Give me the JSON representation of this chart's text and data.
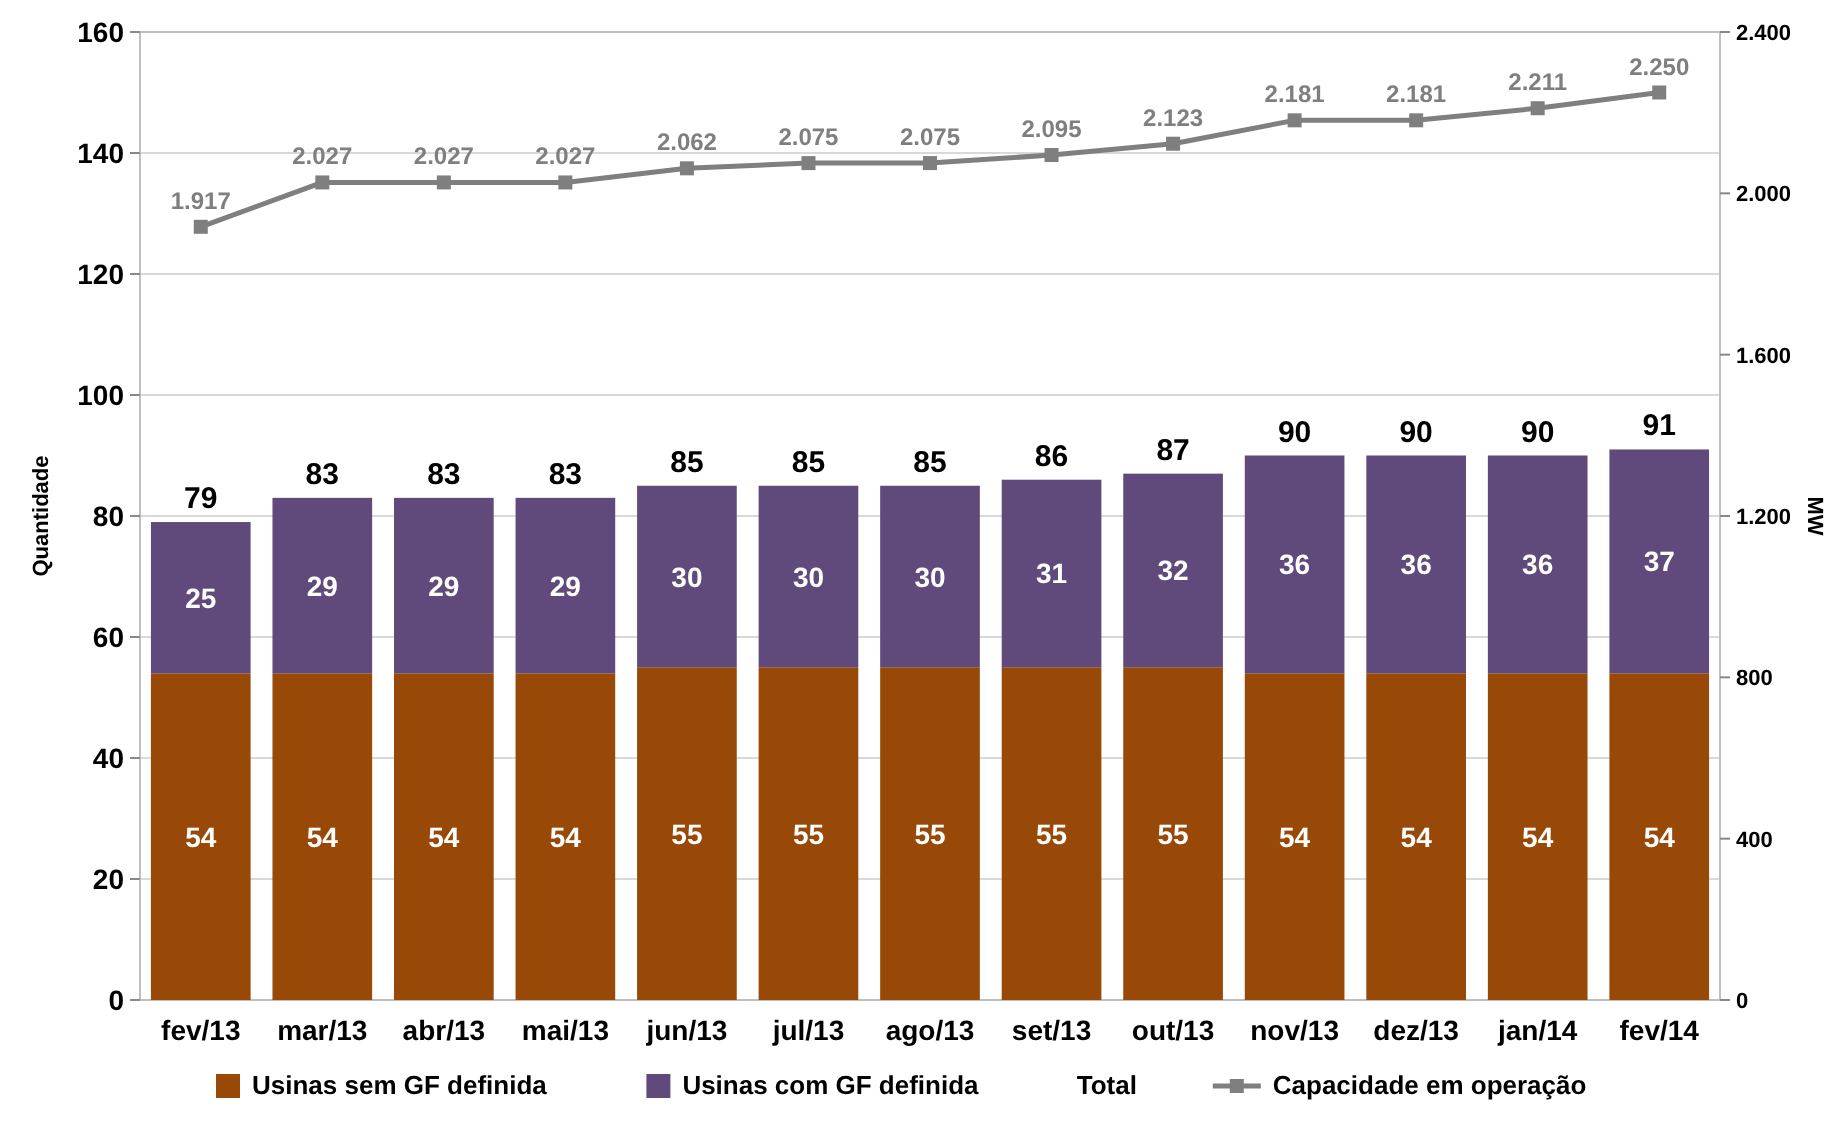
{
  "chart_data": {
    "type": "bar",
    "stacked": true,
    "categories": [
      "fev/13",
      "mar/13",
      "abr/13",
      "mai/13",
      "jun/13",
      "jul/13",
      "ago/13",
      "set/13",
      "out/13",
      "nov/13",
      "dez/13",
      "jan/14",
      "fev/14"
    ],
    "series": [
      {
        "name": "Usinas sem GF definida",
        "color": "#984807",
        "values": [
          54,
          54,
          54,
          54,
          55,
          55,
          55,
          55,
          55,
          54,
          54,
          54,
          54
        ]
      },
      {
        "name": "Usinas com GF definida",
        "color": "#604a7b",
        "values": [
          25,
          29,
          29,
          29,
          30,
          30,
          30,
          31,
          32,
          36,
          36,
          36,
          37
        ]
      },
      {
        "name": "Capacidade em operação",
        "type": "line",
        "axis": "y2",
        "color": "#7f7f7f",
        "marker": "square",
        "values": [
          1917,
          2027,
          2027,
          2027,
          2062,
          2075,
          2075,
          2095,
          2123,
          2181,
          2181,
          2211,
          2250
        ],
        "value_labels": [
          "1.917",
          "2.027",
          "2.027",
          "2.027",
          "2.062",
          "2.075",
          "2.075",
          "2.095",
          "2.123",
          "2.181",
          "2.181",
          "2.211",
          "2.250"
        ]
      }
    ],
    "totals": [
      "79",
      "83",
      "83",
      "83",
      "85",
      "85",
      "85",
      "86",
      "87",
      "90",
      "90",
      "90",
      "91"
    ],
    "annotations": [
      "Total"
    ],
    "data_labels": true,
    "ylabel": "Quantidade",
    "y2label": "MW",
    "ylim": [
      0,
      160
    ],
    "yticks": [
      0,
      20,
      40,
      60,
      80,
      100,
      120,
      140,
      160
    ],
    "y2lim": [
      0,
      2400
    ],
    "y2ticks": [
      0,
      400,
      800,
      {
        "value": 1200,
        "label": "1.200"
      },
      {
        "value": 1600,
        "label": "1.600"
      },
      {
        "value": 2000,
        "label": "2.000"
      },
      {
        "value": 2400,
        "label": "2.400"
      }
    ],
    "grid": "y",
    "legend": "bottom"
  }
}
